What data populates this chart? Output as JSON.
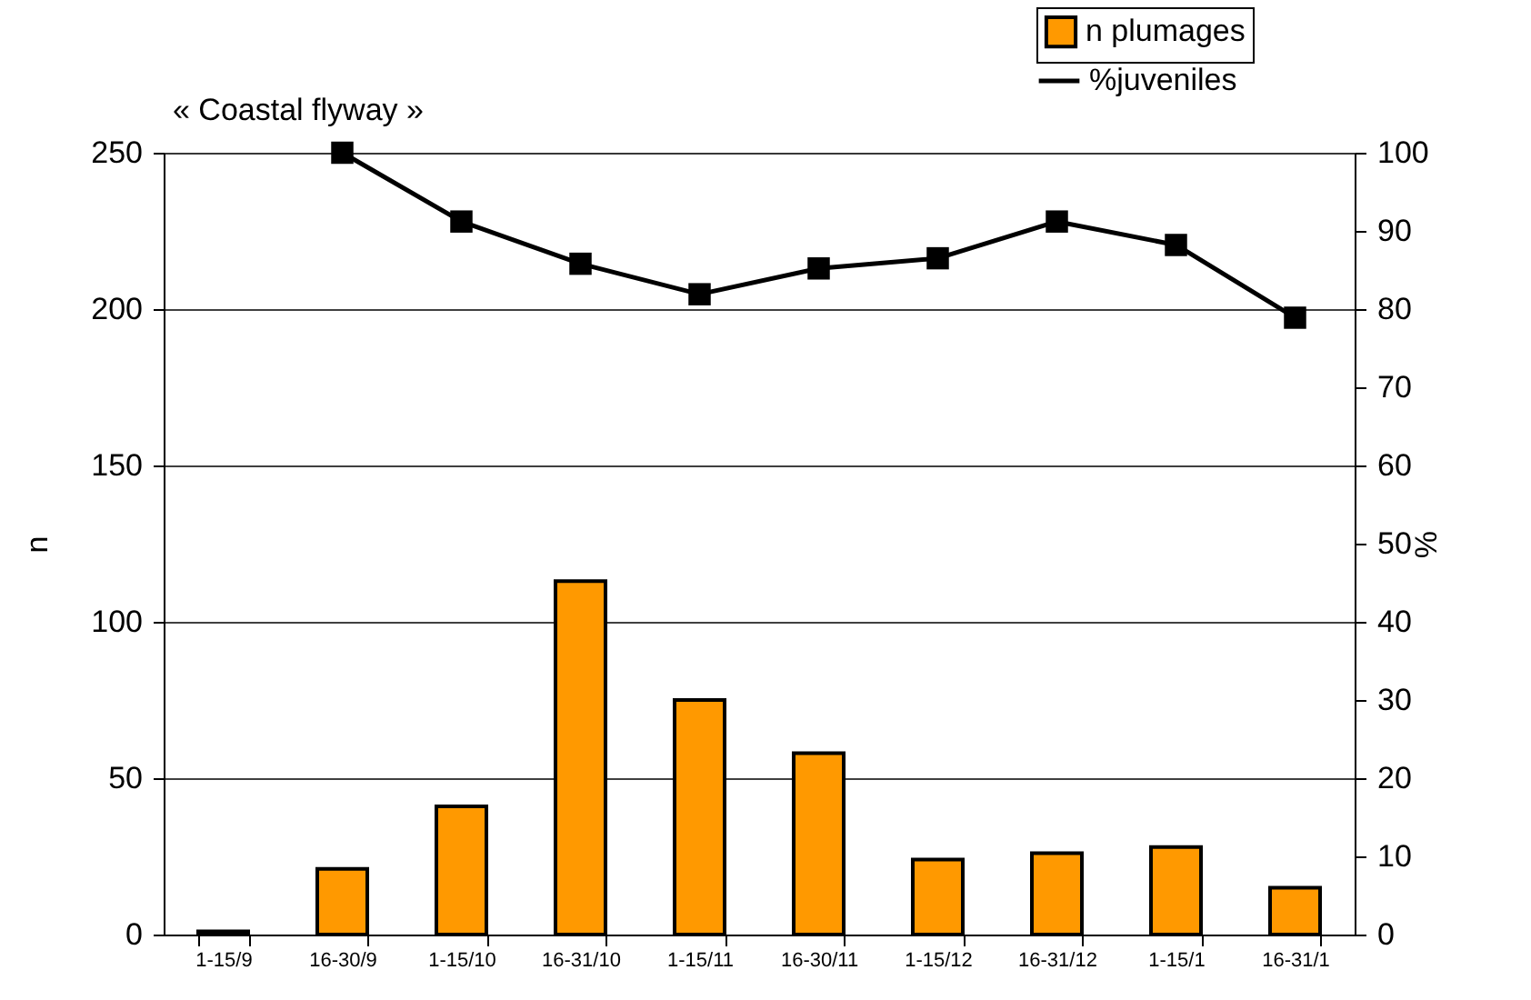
{
  "chart_data": {
    "type": "bar",
    "title": "« Coastal flyway »",
    "ylabel": "n",
    "y2label": "%",
    "categories": [
      "1-15/9",
      "16-30/9",
      "1-15/10",
      "16-31/10",
      "1-15/11",
      "16-30/11",
      "1-15/12",
      "16-31/12",
      "1-15/1",
      "16-31/1"
    ],
    "series": [
      {
        "name": "n plumages",
        "color": "#ff9900",
        "values": [
          1,
          21,
          41,
          113,
          75,
          58,
          24,
          26,
          28,
          15
        ]
      },
      {
        "name": "%juveniles",
        "type": "line",
        "axis": "y2",
        "color": "#000000",
        "marker": "square",
        "values": [
          null,
          100,
          91.2,
          85.8,
          81.9,
          85.2,
          86.5,
          91.2,
          88.2,
          78.9
        ]
      }
    ],
    "ylim": [
      0,
      250
    ],
    "yticks": [
      0,
      50,
      100,
      150,
      200,
      250
    ],
    "y2lim": [
      0,
      100
    ],
    "y2ticks": [
      0,
      10,
      20,
      30,
      40,
      50,
      60,
      70,
      80,
      90,
      100
    ],
    "grid": "y",
    "legend": "top right"
  }
}
